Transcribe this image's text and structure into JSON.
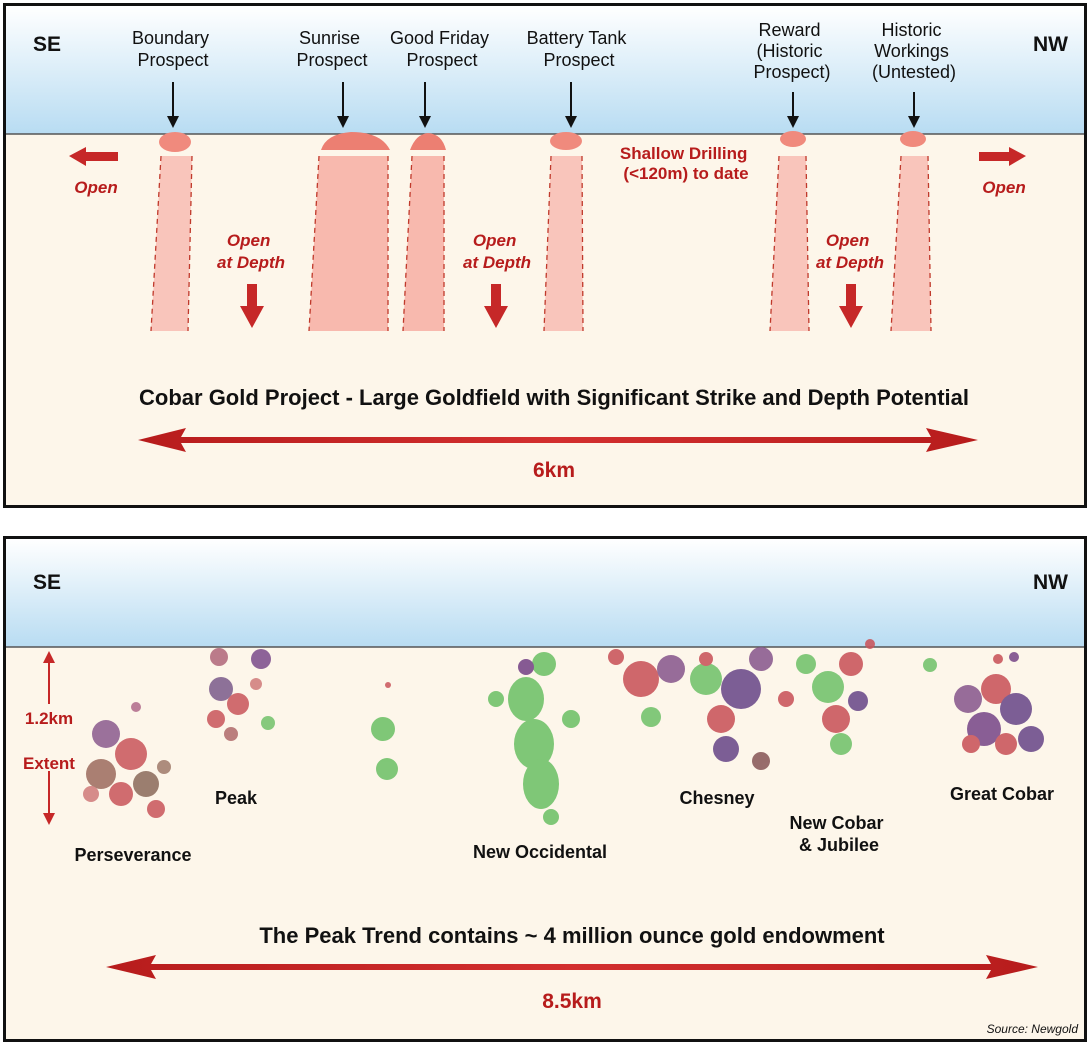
{
  "top_panel": {
    "direction_left": "SE",
    "direction_right": "NW",
    "prospects": [
      {
        "lines": [
          "Boundary",
          "Prospect"
        ]
      },
      {
        "lines": [
          "Sunrise",
          "Prospect"
        ]
      },
      {
        "lines": [
          "Good Friday",
          "Prospect"
        ]
      },
      {
        "lines": [
          "Battery Tank",
          "Prospect"
        ]
      },
      {
        "lines": [
          "Reward",
          "(Historic",
          "Prospect)"
        ]
      },
      {
        "lines": [
          "Historic",
          "Workings",
          "(Untested)"
        ]
      }
    ],
    "open_left": "Open",
    "open_right": "Open",
    "open_at_depth": [
      {
        "lines": [
          "Open",
          "at Depth"
        ]
      },
      {
        "lines": [
          "Open",
          "at Depth"
        ]
      },
      {
        "lines": [
          "Open",
          "at Depth"
        ]
      }
    ],
    "shallow_drilling": [
      "Shallow Drilling",
      "(<120m) to date"
    ],
    "title": "Cobar Gold Project - Large Goldfield with Significant Strike and Depth Potential",
    "distance": "6km"
  },
  "bottom_panel": {
    "direction_left": "SE",
    "direction_right": "NW",
    "extent_top": "1.2km",
    "extent_bottom": "Extent",
    "deposits": [
      {
        "lines": [
          "Perseverance"
        ]
      },
      {
        "lines": [
          "Peak"
        ]
      },
      {
        "lines": [
          "New Occidental"
        ]
      },
      {
        "lines": [
          "Chesney"
        ]
      },
      {
        "lines": [
          "New Cobar",
          "& Jubilee"
        ]
      },
      {
        "lines": [
          "Great Cobar"
        ]
      }
    ],
    "title": "The Peak Trend contains ~ 4 million ounce gold endowment",
    "distance": "8.5km",
    "source": "Source: Newgold"
  },
  "colors": {
    "sky_top": "#b8dcf2",
    "ground": "#fdf6ea",
    "zone_fill": "#f8b9ae",
    "accent_red": "#b71c1c",
    "ore_green": "#72c26b",
    "ore_red": "#c9545a",
    "ore_purple": "#6b4a8a"
  }
}
